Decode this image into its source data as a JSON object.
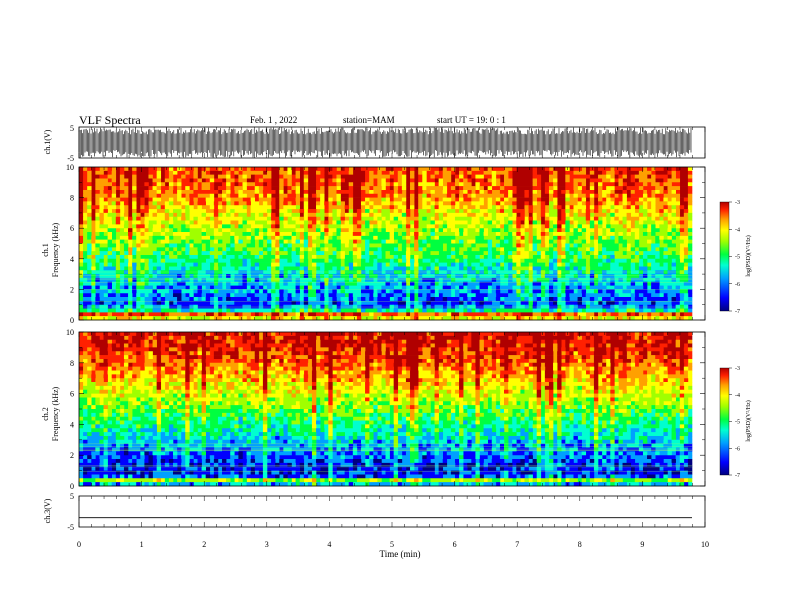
{
  "header": {
    "title": "VLF Spectra",
    "date": "Feb. 1 , 2022",
    "station": "station=MAM",
    "start": "start UT = 19: 0 : 1"
  },
  "chart_data": [
    {
      "type": "line",
      "name": "waveform_ch1",
      "ylabel": "ch.1(V)",
      "ylim": [
        -5,
        5
      ],
      "ytick_labels": [
        "5",
        "-5"
      ],
      "description_values": {
        "pattern": "dense oscillation, full scale",
        "y_range": [
          -5,
          5
        ]
      },
      "x": [
        0,
        1,
        2,
        3,
        4,
        5,
        6,
        7,
        8,
        9,
        9.85
      ],
      "values": [
        0,
        0,
        0,
        0,
        0,
        0,
        0,
        0,
        0,
        0,
        0
      ]
    },
    {
      "type": "heatmap",
      "name": "spectrogram_ch1",
      "ylabel": "Frequency (kHz)",
      "channel_label": "ch.1",
      "xlim": [
        0,
        10
      ],
      "ylim": [
        0,
        10
      ],
      "ytick_labels": [
        "0",
        "2",
        "4",
        "6",
        "8",
        "10"
      ],
      "colorbar": {
        "label": "log(PSD)(V²/Hz)",
        "range": [
          -7,
          -3
        ],
        "tick_labels": [
          "-3",
          "-4",
          "-5",
          "-6",
          "-7"
        ]
      },
      "freq_khz": [
        0,
        1,
        2,
        3,
        4,
        5,
        6,
        7,
        8,
        9,
        10
      ],
      "mean_log_psd": [
        -4.2,
        -6.3,
        -6.0,
        -5.7,
        -5.3,
        -5.0,
        -4.7,
        -4.4,
        -4.0,
        -3.8,
        -3.7
      ]
    },
    {
      "type": "heatmap",
      "name": "spectrogram_ch2",
      "ylabel": "Frequency (kHz)",
      "channel_label": "ch.2",
      "xlim": [
        0,
        10
      ],
      "ylim": [
        0,
        10
      ],
      "ytick_labels": [
        "0",
        "2",
        "4",
        "6",
        "8",
        "10"
      ],
      "colorbar": {
        "label": "log(PSD)(V²/Hz)",
        "range": [
          -7,
          -3
        ],
        "tick_labels": [
          "-3",
          "-4",
          "-5",
          "-6",
          "-7"
        ]
      },
      "freq_khz": [
        0,
        1,
        2,
        3,
        4,
        5,
        6,
        7,
        8,
        9,
        10
      ],
      "mean_log_psd": [
        -5.8,
        -6.5,
        -6.2,
        -5.8,
        -5.4,
        -5.0,
        -4.6,
        -4.2,
        -3.8,
        -3.5,
        -3.4
      ]
    },
    {
      "type": "line",
      "name": "waveform_ch3",
      "ylabel": "ch.3(V)",
      "ylim": [
        -5,
        5
      ],
      "ytick_labels": [
        "5",
        "-5"
      ],
      "x": [
        0,
        9.85
      ],
      "values": [
        -2,
        -2
      ]
    }
  ],
  "xaxis": {
    "label": "Time (min)",
    "range": [
      0,
      10
    ],
    "tick_labels": [
      "0",
      "1",
      "2",
      "3",
      "4",
      "5",
      "6",
      "7",
      "8",
      "9",
      "10"
    ]
  },
  "colors": {
    "background": "#ffffff",
    "axis": "#000000",
    "colormap": [
      "#00007f",
      "#0000ff",
      "#00a0ff",
      "#00ffd0",
      "#00ff40",
      "#a0ff00",
      "#ffff00",
      "#ffa000",
      "#ff2000",
      "#b00000"
    ]
  }
}
